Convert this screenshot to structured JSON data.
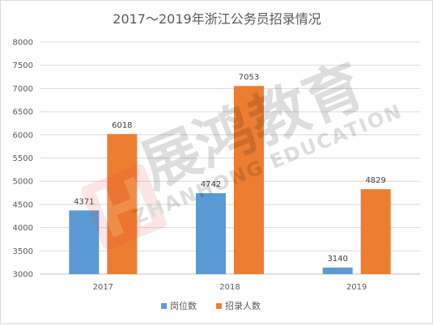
{
  "chart_data": {
    "type": "bar",
    "title": "2017～2019年浙江公务员招录情况",
    "categories": [
      "2017",
      "2018",
      "2019"
    ],
    "series": [
      {
        "name": "岗位数",
        "values": [
          4371,
          4742,
          3140
        ],
        "color": "#5b9bd5"
      },
      {
        "name": "招录人数",
        "values": [
          6018,
          7053,
          4829
        ],
        "color": "#ed7d31"
      }
    ],
    "ylim": [
      3000,
      8000
    ],
    "yticks": [
      3000,
      3500,
      4000,
      4500,
      5000,
      5500,
      6000,
      6500,
      7000,
      7500,
      8000
    ],
    "grid": true,
    "legend_position": "bottom"
  },
  "watermark": {
    "text_cn": "展鸿教育",
    "text_en": "ZHANHONG EDUCATION",
    "logo_color": "#e8473c"
  }
}
